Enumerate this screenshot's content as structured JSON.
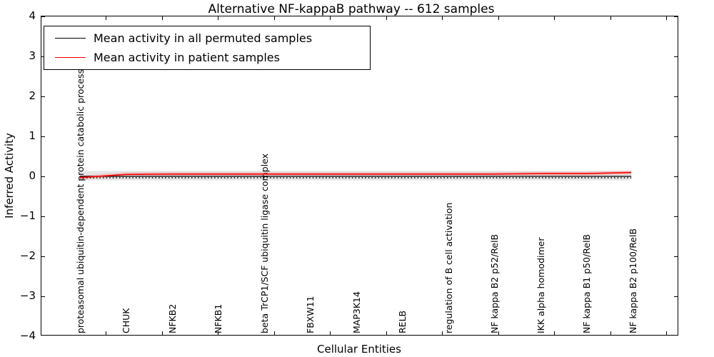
{
  "figure": {
    "title": "Alternative NF-kappaB pathway -- 612 samples"
  },
  "legend": {
    "items": [
      {
        "label": "Mean activity in all permuted samples",
        "color": "#000000"
      },
      {
        "label": "Mean activity in patient samples",
        "color": "#ff0000"
      }
    ]
  },
  "chart_data": {
    "type": "line",
    "title": "Alternative NF-kappaB pathway -- 612 samples",
    "xlabel": "Cellular Entities",
    "ylabel": "Inferred Activity",
    "ylim": [
      -4,
      4
    ],
    "yticks": [
      4,
      3,
      2,
      1,
      0,
      -1,
      -2,
      -3,
      -4
    ],
    "grid": false,
    "legend_position": "upper left",
    "categories": [
      "proteasomal ubiquitin-dependent protein catabolic process",
      "CHUK",
      "NFKB2",
      "NFKB1",
      "beta TrCP1/SCF ubiquitin ligase complex",
      "FBXW11",
      "MAP3K14",
      "RELB",
      "regulation of B cell activation",
      "NF kappa B2 p52/RelB",
      "IKK alpha homodimer",
      "NF kappa B1 p50/RelB",
      "NF kappa B2 p100/RelB"
    ],
    "series": [
      {
        "name": "Mean activity in all permuted samples",
        "color": "#000000",
        "style": "solid-with-tick-markers",
        "values": [
          0,
          0,
          0,
          0,
          0,
          0,
          0,
          0,
          0,
          0,
          0,
          0,
          0
        ]
      },
      {
        "name": "Mean activity in patient samples",
        "color": "#ff0000",
        "style": "solid",
        "values": [
          -0.05,
          0.03,
          0.04,
          0.04,
          0.04,
          0.04,
          0.04,
          0.04,
          0.04,
          0.04,
          0.05,
          0.05,
          0.08
        ]
      }
    ],
    "bands": [
      {
        "around_series": 0,
        "halfwidth": 0.12,
        "color": "#000000",
        "opacity": 0.1
      },
      {
        "around_series": 1,
        "halfwidth": 0.05,
        "color": "#ff0000",
        "opacity": 0.15
      }
    ]
  }
}
